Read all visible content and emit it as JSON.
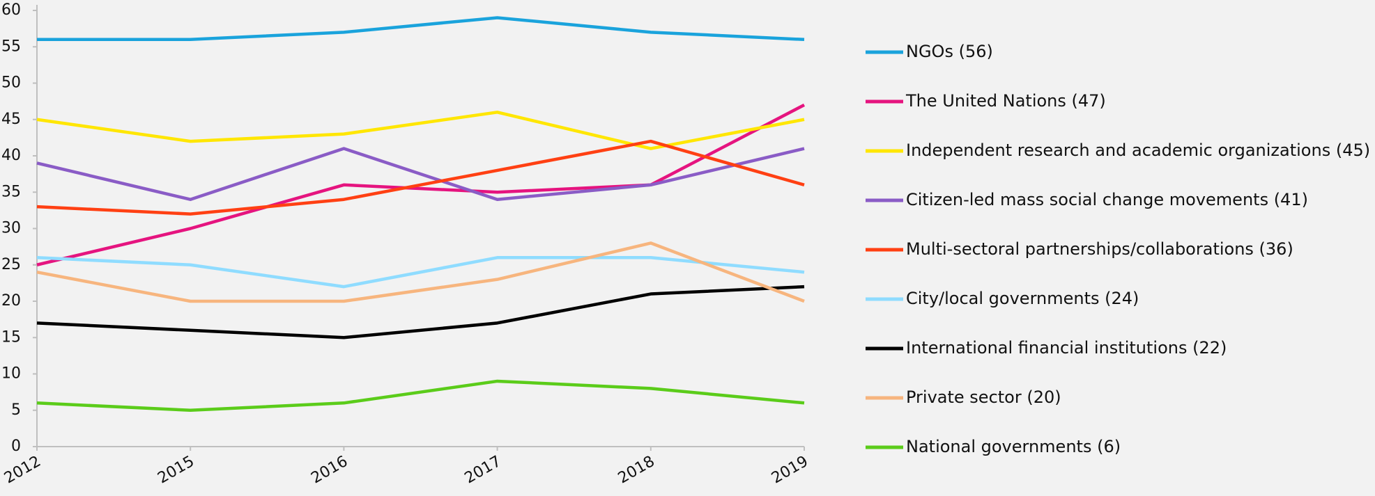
{
  "chart_data": {
    "type": "line",
    "categories": [
      "2012",
      "2015",
      "2016",
      "2017",
      "2018",
      "2019"
    ],
    "series": [
      {
        "name": "NGOs (56)",
        "color": "#1aa3dc",
        "values": [
          56,
          56,
          57,
          59,
          57,
          56
        ]
      },
      {
        "name": "The United Nations (47)",
        "color": "#e5147f",
        "values": [
          25,
          30,
          36,
          35,
          36,
          47
        ]
      },
      {
        "name": "Independent research and academic organizations (45)",
        "color": "#ffe600",
        "values": [
          45,
          42,
          43,
          46,
          41,
          45
        ]
      },
      {
        "name": "Citizen-led mass social change movements (41)",
        "color": "#8a5cc6",
        "values": [
          39,
          34,
          41,
          34,
          36,
          41
        ]
      },
      {
        "name": "Multi-sectoral partnerships/collaborations (36)",
        "color": "#ff4013",
        "values": [
          33,
          32,
          34,
          38,
          42,
          36
        ]
      },
      {
        "name": "City/local governments (24)",
        "color": "#8fdcff",
        "values": [
          26,
          25,
          22,
          26,
          26,
          24
        ]
      },
      {
        "name": "International financial institutions (22)",
        "color": "#000000",
        "values": [
          17,
          16,
          15,
          17,
          21,
          22
        ]
      },
      {
        "name": "Private sector (20)",
        "color": "#f7b57e",
        "values": [
          24,
          20,
          20,
          23,
          28,
          20
        ]
      },
      {
        "name": "National governments (6)",
        "color": "#5bcc1a",
        "values": [
          6,
          5,
          6,
          9,
          8,
          6
        ]
      }
    ],
    "ylim": [
      0,
      60
    ],
    "yticks": [
      0,
      5,
      10,
      15,
      20,
      25,
      30,
      35,
      40,
      45,
      50,
      55,
      60
    ],
    "legend": "right"
  }
}
